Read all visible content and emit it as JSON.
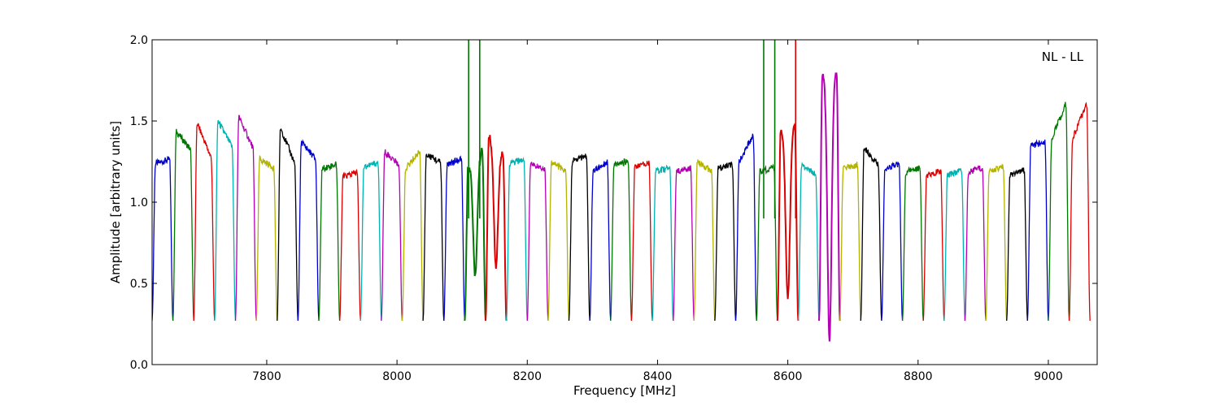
{
  "chart_data": {
    "type": "line",
    "title": "",
    "annotation": "NL - LL",
    "xlabel": "Frequency [MHz]",
    "ylabel": "Amplitude [arbitrary units]",
    "xlim": [
      7624,
      9075
    ],
    "ylim": [
      0,
      2.0
    ],
    "grid": false,
    "legend": "none",
    "x_ticks": [
      7800,
      8000,
      8200,
      8400,
      8600,
      8800,
      9000
    ],
    "y_ticks": [
      0.0,
      0.5,
      1.0,
      1.5,
      2.0
    ],
    "y_tick_labels": [
      "0.0",
      "0.5",
      "1.0",
      "1.5",
      "2.0"
    ],
    "series_colors": [
      "#0000cc",
      "#007700",
      "#dd0000",
      "#00b3b3",
      "#b300b3",
      "#b3b300",
      "#000000"
    ],
    "channel_start": 7624,
    "channel_width": 32,
    "channel_count": 45,
    "channels": [
      {
        "peak": 1.25,
        "slope": 0.05
      },
      {
        "peak": 1.38,
        "slope": -0.2
      },
      {
        "peak": 1.38,
        "slope": -0.4
      },
      {
        "peak": 1.42,
        "slope": -0.3
      },
      {
        "peak": 1.43,
        "slope": -0.35
      },
      {
        "peak": 1.24,
        "slope": -0.1
      },
      {
        "peak": 1.35,
        "slope": -0.4
      },
      {
        "peak": 1.32,
        "slope": -0.2
      },
      {
        "peak": 1.22,
        "slope": 0.05
      },
      {
        "peak": 1.17,
        "slope": 0.05
      },
      {
        "peak": 1.23,
        "slope": 0.05
      },
      {
        "peak": 1.27,
        "slope": -0.15
      },
      {
        "peak": 1.26,
        "slope": 0.2
      },
      {
        "peak": 1.27,
        "slope": -0.1
      },
      {
        "peak": 1.25,
        "slope": 0.05
      },
      {
        "peak": 1.27,
        "slope": 0.2,
        "dip": 0.55
      },
      {
        "peak": 1.36,
        "slope": -0.2,
        "dip": 0.6
      },
      {
        "peak": 1.25,
        "slope": 0.05
      },
      {
        "peak": 1.22,
        "slope": -0.05
      },
      {
        "peak": 1.22,
        "slope": -0.1
      },
      {
        "peak": 1.27,
        "slope": 0.05
      },
      {
        "peak": 1.22,
        "slope": 0.1
      },
      {
        "peak": 1.24,
        "slope": 0.05
      },
      {
        "peak": 1.23,
        "slope": 0.05
      },
      {
        "peak": 1.2,
        "slope": 0.05
      },
      {
        "peak": 1.2,
        "slope": 0.05
      },
      {
        "peak": 1.22,
        "slope": -0.1
      },
      {
        "peak": 1.22,
        "slope": 0.05
      },
      {
        "peak": 1.33,
        "slope": 0.3
      },
      {
        "peak": 1.2,
        "slope": 0.05
      },
      {
        "peak": 1.45,
        "slope": 0.05,
        "dip": 0.4
      },
      {
        "peak": 1.2,
        "slope": -0.1
      },
      {
        "peak": 1.8,
        "slope": 0.0,
        "dip": 0.15
      },
      {
        "peak": 1.22,
        "slope": 0.05
      },
      {
        "peak": 1.28,
        "slope": -0.2
      },
      {
        "peak": 1.22,
        "slope": 0.05
      },
      {
        "peak": 1.2,
        "slope": 0.05
      },
      {
        "peak": 1.18,
        "slope": 0.05
      },
      {
        "peak": 1.18,
        "slope": 0.05
      },
      {
        "peak": 1.2,
        "slope": 0.05
      },
      {
        "peak": 1.2,
        "slope": 0.05
      },
      {
        "peak": 1.18,
        "slope": 0.05
      },
      {
        "peak": 1.36,
        "slope": 0.05
      },
      {
        "peak": 1.5,
        "slope": 0.4
      },
      {
        "peak": 1.5,
        "slope": 0.4
      }
    ],
    "spikes": [
      {
        "x": 8110,
        "y": 2.0
      },
      {
        "x": 8127,
        "y": 2.0
      },
      {
        "x": 8563,
        "y": 2.0
      },
      {
        "x": 8580,
        "y": 2.0
      },
      {
        "x": 8612,
        "y": 2.0
      }
    ]
  }
}
